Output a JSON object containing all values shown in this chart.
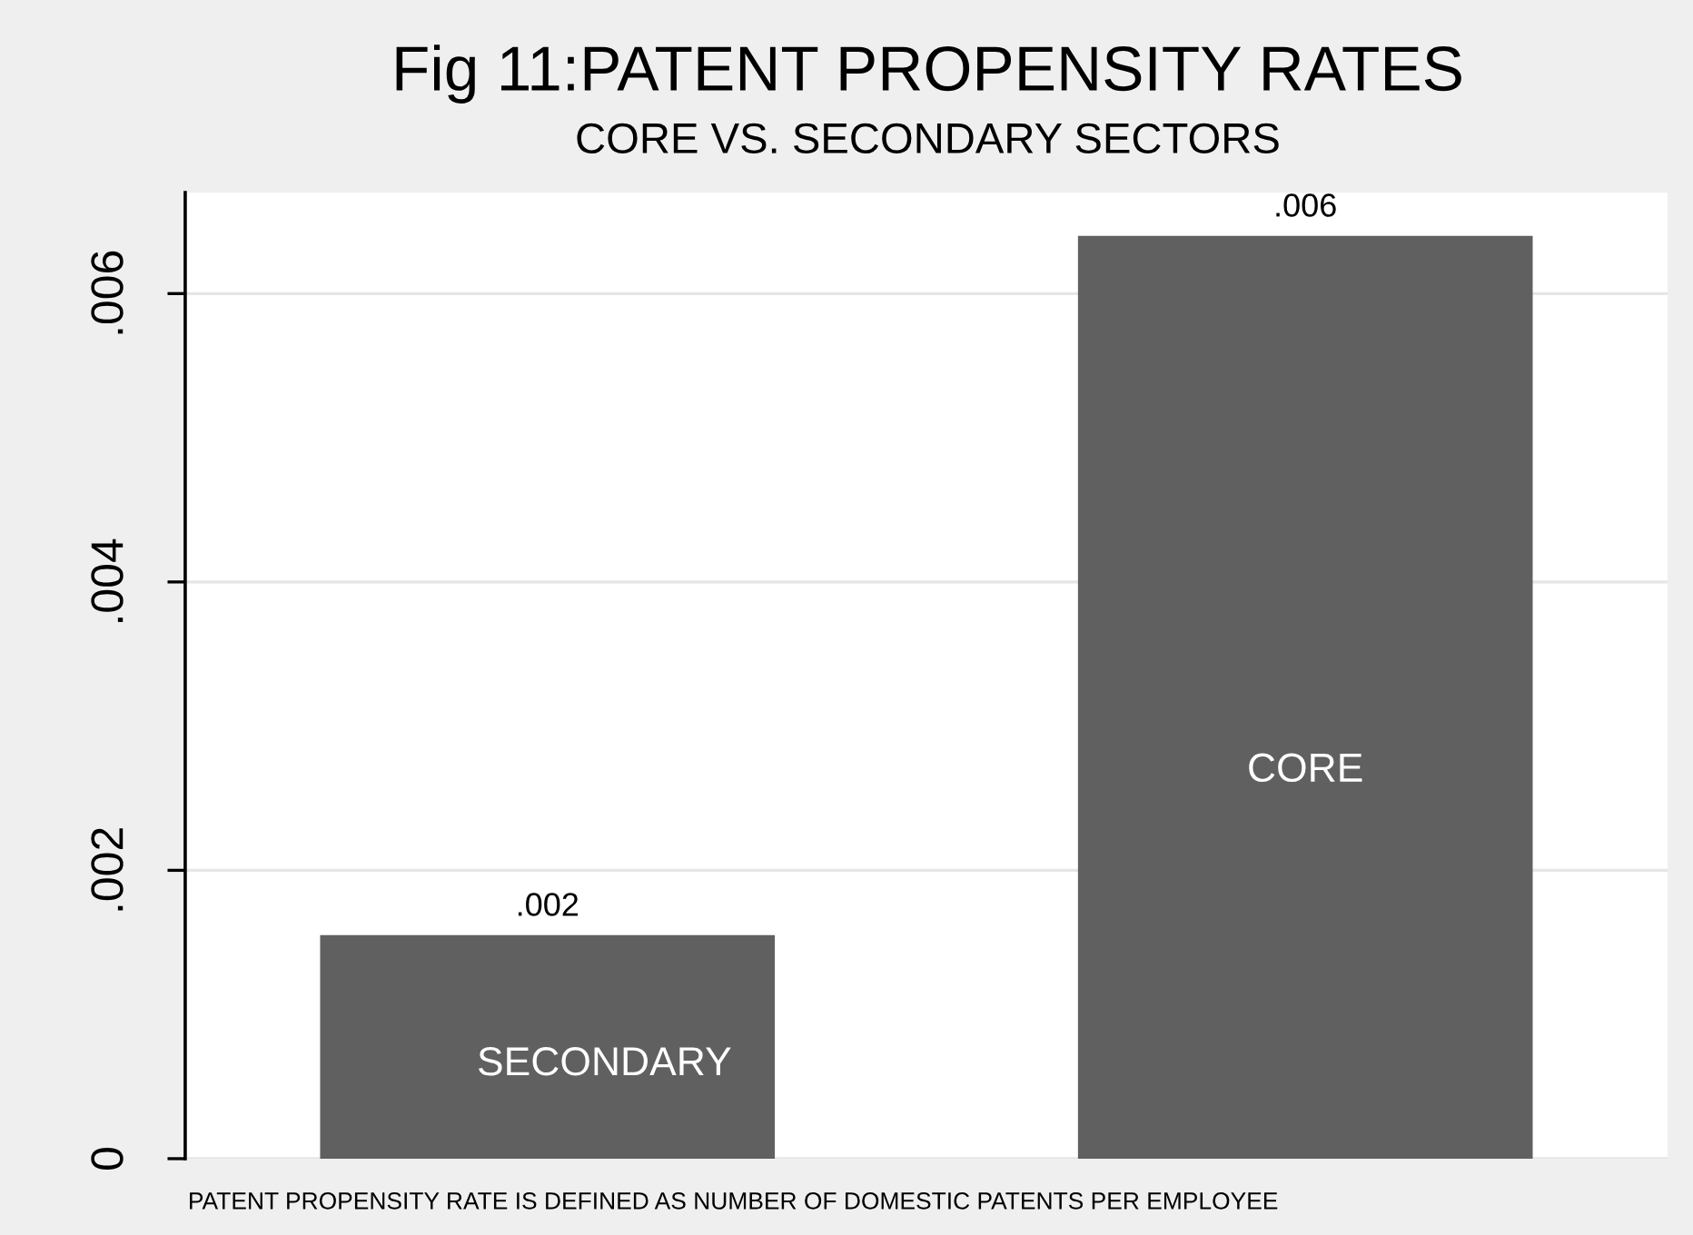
{
  "chart_data": {
    "type": "bar",
    "title": "Fig 11:PATENT PROPENSITY RATES",
    "subtitle": "CORE VS. SECONDARY SECTORS",
    "categories": [
      "SECONDARY",
      "CORE"
    ],
    "values": [
      0.00155,
      0.0064
    ],
    "color": "#606060",
    "value_labels": [
      ".002",
      ".006"
    ],
    "ylim": [
      0,
      0.0067
    ],
    "yticks": [
      0,
      {
        "value": 0.002,
        "label": ".002"
      },
      {
        "value": 0.004,
        "label": ".004"
      },
      {
        "value": 0.006,
        "label": ".006"
      }
    ],
    "grid": "y",
    "tick_labels": "y",
    "annotations": [
      "PATENT PROPENSITY RATE IS DEFINED AS NUMBER OF DOMESTIC PATENTS PER EMPLOYEE"
    ]
  }
}
